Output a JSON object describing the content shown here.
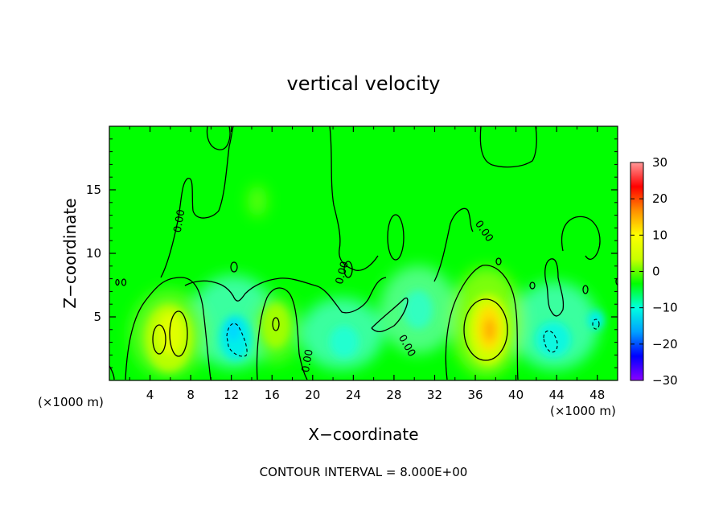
{
  "chart_data": {
    "type": "heatmap",
    "title": "vertical velocity",
    "xlabel": "X−coordinate",
    "ylabel": "Z−coordinate",
    "x_unit_left": "(×1000 m)",
    "x_unit_right": "(×1000 m)",
    "xlim": [
      0,
      50
    ],
    "ylim": [
      0,
      20
    ],
    "x_ticks": [
      4,
      8,
      12,
      16,
      20,
      24,
      28,
      32,
      36,
      40,
      44,
      48
    ],
    "x_tick_labels": [
      "4",
      "8",
      "12",
      "16",
      "20",
      "24",
      "28",
      "32",
      "36",
      "40",
      "44",
      "48"
    ],
    "y_ticks": [
      5,
      10,
      15
    ],
    "y_tick_labels": [
      "5",
      "10",
      "15"
    ],
    "colorbar": {
      "range": [
        -30,
        30
      ],
      "ticks": [
        30,
        20,
        10,
        0,
        -10,
        -20,
        -30
      ],
      "tick_labels": [
        "30",
        "20",
        "10",
        "0",
        "−10",
        "−20",
        "−30"
      ],
      "colors": [
        "#8b00ff",
        "#0000ff",
        "#00a0ff",
        "#00ffe0",
        "#00ff00",
        "#c8ff00",
        "#ffff00",
        "#ff9000",
        "#ff0000",
        "#ff9898"
      ]
    },
    "background_value": 0,
    "contour_labels": [
      {
        "x": 7.2,
        "y": 12.5,
        "text": "0.00"
      },
      {
        "x": 19.8,
        "y": 1.5,
        "text": "0.00"
      },
      {
        "x": 23.2,
        "y": 8.4,
        "text": "0.00"
      },
      {
        "x": 29.0,
        "y": 2.6,
        "text": "0.00"
      },
      {
        "x": 36.6,
        "y": 11.6,
        "text": "0.00"
      }
    ],
    "features": [
      {
        "name": "updraft-1",
        "x": 6.0,
        "z": 3.5,
        "peak": 6
      },
      {
        "name": "downdraft-1",
        "x": 12.5,
        "z": 3.5,
        "peak": -8
      },
      {
        "name": "updraft-2",
        "x": 16.2,
        "z": 4.5,
        "peak": 5
      },
      {
        "name": "downdraft-2",
        "x": 23.5,
        "z": 3.2,
        "peak": -6
      },
      {
        "name": "downdraft-3",
        "x": 30.5,
        "z": 5.5,
        "peak": -4
      },
      {
        "name": "updraft-3",
        "x": 37.0,
        "z": 4.2,
        "peak": 12
      },
      {
        "name": "downdraft-4",
        "x": 43.5,
        "z": 3.0,
        "peak": -7
      },
      {
        "name": "downdraft-5",
        "x": 47.5,
        "z": 4.5,
        "peak": -6
      },
      {
        "name": "updraft-4",
        "x": 14.8,
        "z": 14.2,
        "peak": 3
      }
    ],
    "contour_interval_text": "CONTOUR INTERVAL = 8.000E+00"
  }
}
